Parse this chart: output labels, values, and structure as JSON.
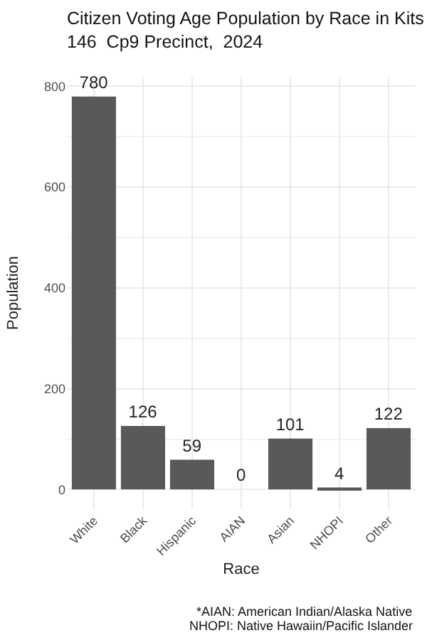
{
  "chart_data": {
    "type": "bar",
    "title": "Citizen Voting Age Population by Race in Kits\n146  Cp9 Precinct,  2024",
    "xlabel": "Race",
    "ylabel": "Population",
    "categories": [
      "White",
      "Black",
      "Hispanic",
      "AIAN",
      "Asian",
      "NHOPI",
      "Other"
    ],
    "values": [
      780,
      126,
      59,
      0,
      101,
      4,
      122
    ],
    "color": "#595959",
    "ylim": [
      -39,
      819
    ],
    "yticks": [
      0,
      200,
      400,
      600,
      800
    ],
    "grid": true,
    "data_labels": true,
    "legend": false,
    "annotations": [
      "*AIAN: American Indian/Alaska Native",
      "NHOPI: Native Hawaiin/Pacific Islander"
    ]
  }
}
